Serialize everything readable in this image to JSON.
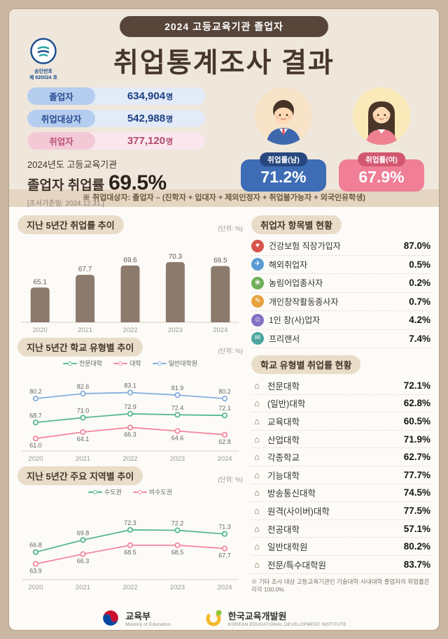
{
  "header": {
    "badge": "2024 고등교육기관 졸업자",
    "title": "취업통계조사 결과",
    "approval": {
      "line1": "승인번호",
      "line2": "제 920024 호"
    }
  },
  "stats": {
    "rows": [
      {
        "label": "졸업자",
        "value": "634,904",
        "unit": "명",
        "theme": "blue"
      },
      {
        "label": "취업대상자",
        "value": "542,988",
        "unit": "명",
        "theme": "blue"
      },
      {
        "label": "취업자",
        "value": "377,120",
        "unit": "명",
        "theme": "pink"
      }
    ],
    "summary": {
      "line1": "2024년도 고등교육기관",
      "line2": "졸업자 취업률",
      "rate": "69.5%",
      "basis": "[조사기준일: 2024.12.31.]"
    },
    "male": {
      "label": "취업률(남)",
      "value": "71.2%"
    },
    "female": {
      "label": "취업률(여)",
      "value": "67.9%"
    }
  },
  "notice": "※ 취업대상자: 졸업자 – (진학자 + 입대자 + 제외인정자 + 취업불가능자 + 외국인유학생)",
  "chart_data": [
    {
      "type": "bar",
      "title": "지난 5년간 취업률 추이",
      "unit_label": "(단위: %)",
      "categories": [
        "2020",
        "2021",
        "2022",
        "2023",
        "2024"
      ],
      "values": [
        65.1,
        67.7,
        69.6,
        70.3,
        69.5
      ],
      "ylim": [
        58,
        74
      ],
      "bar_color": "#8c7a6d"
    },
    {
      "type": "line",
      "title": "지난 5년간 학교 유형별 추이",
      "unit_label": "(단위: %)",
      "categories": [
        "2020",
        "2021",
        "2022",
        "2023",
        "2024"
      ],
      "series": [
        {
          "name": "전문대학",
          "color": "#56b98d",
          "values": [
            68.7,
            71.0,
            72.9,
            72.4,
            72.1
          ]
        },
        {
          "name": "대학",
          "color": "#f2879d",
          "values": [
            61.0,
            64.1,
            66.3,
            64.6,
            62.8
          ]
        },
        {
          "name": "일반대학원",
          "color": "#84aede",
          "values": [
            80.2,
            82.6,
            83.1,
            81.9,
            80.2
          ]
        }
      ],
      "ylim": [
        55,
        90
      ],
      "legend_position": "top"
    },
    {
      "type": "line",
      "title": "지난 5년간 주요 지역별 추이",
      "unit_label": "(단위: %)",
      "categories": [
        "2020",
        "2021",
        "2022",
        "2023",
        "2024"
      ],
      "series": [
        {
          "name": "수도권",
          "color": "#56b98d",
          "values": [
            66.8,
            69.8,
            72.3,
            72.2,
            71.3
          ]
        },
        {
          "name": "비수도권",
          "color": "#f2879d",
          "values": [
            63.9,
            66.3,
            68.5,
            68.5,
            67.7
          ]
        }
      ],
      "ylim": [
        60,
        78
      ],
      "legend_position": "top"
    }
  ],
  "employment_panel": {
    "title": "취업자 항목별 현황",
    "items": [
      {
        "icon": "health-insurance-icon",
        "glyph": "♥",
        "color": "#d9534a",
        "label": "건강보험 직장가입자",
        "value": "87.0%"
      },
      {
        "icon": "overseas-employment-icon",
        "glyph": "✈",
        "color": "#5b9bd5",
        "label": "해외취업자",
        "value": "0.5%"
      },
      {
        "icon": "agriculture-fishery-icon",
        "glyph": "❀",
        "color": "#6fae58",
        "label": "농림어업종사자",
        "value": "0.2%"
      },
      {
        "icon": "creative-activity-icon",
        "glyph": "✎",
        "color": "#e7a33e",
        "label": "개인창작활동종사자",
        "value": "0.7%"
      },
      {
        "icon": "solo-founder-icon",
        "glyph": "☺",
        "color": "#8570c6",
        "label": "1인 창(사)업자",
        "value": "4.2%"
      },
      {
        "icon": "freelancer-icon",
        "glyph": "✉",
        "color": "#4ba6a0",
        "label": "프리랜서",
        "value": "7.4%"
      }
    ]
  },
  "school_panel": {
    "title": "학교 유형별 취업률 현황",
    "icon_glyph": "⌂",
    "items": [
      {
        "label": "전문대학",
        "value": "72.1%"
      },
      {
        "label": "(일반)대학",
        "value": "62.8%"
      },
      {
        "label": "교육대학",
        "value": "60.5%"
      },
      {
        "label": "산업대학",
        "value": "71.9%"
      },
      {
        "label": "각종학교",
        "value": "62.7%"
      },
      {
        "label": "기능대학",
        "value": "77.7%"
      },
      {
        "label": "방송통신대학",
        "value": "74.5%"
      },
      {
        "label": "원격(사이버)대학",
        "value": "77.5%"
      },
      {
        "label": "전공대학",
        "value": "57.1%"
      },
      {
        "label": "일반대학원",
        "value": "80.2%"
      },
      {
        "label": "전문/특수대학원",
        "value": "83.7%"
      }
    ],
    "footnote": "※ 기타 조사 대상 고등교육기관인 기술대학·사내대학 졸업자의 취업률은 각각 100.0%"
  },
  "footer": {
    "moe": {
      "name": "교육부",
      "eng": "Ministry of Education"
    },
    "kedi": {
      "name": "한국교육개발원",
      "eng": "KOREAN EDUCATIONAL DEVELOPMENT INSTITUTE"
    }
  }
}
